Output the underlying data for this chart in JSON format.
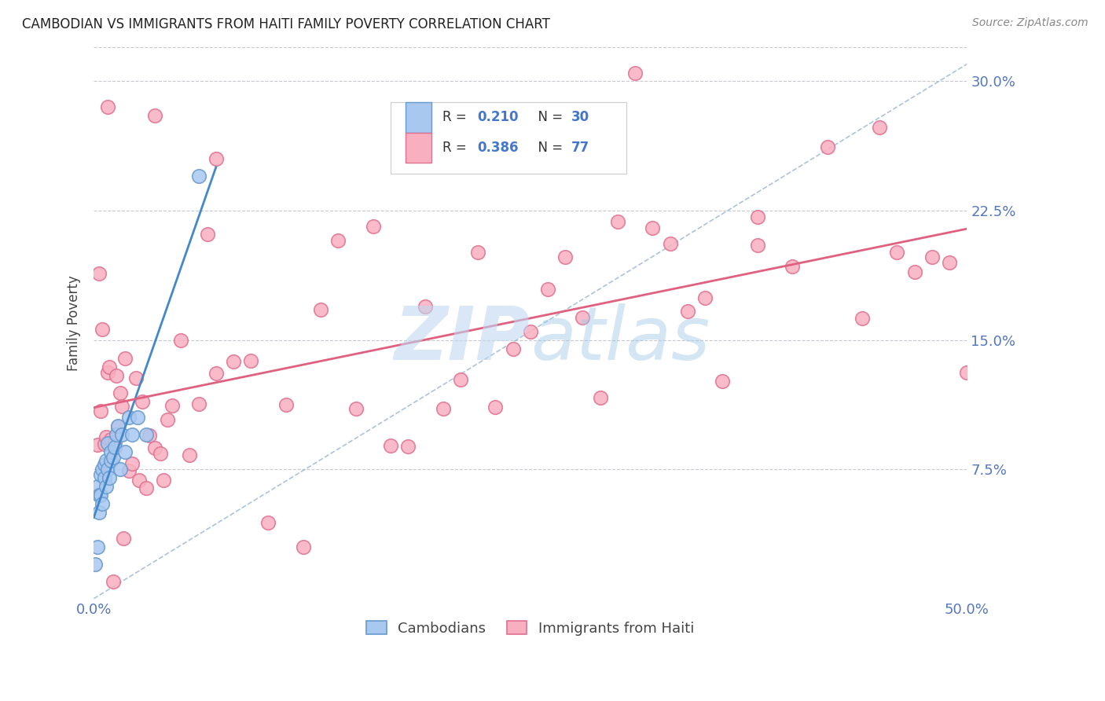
{
  "title": "CAMBODIAN VS IMMIGRANTS FROM HAITI FAMILY POVERTY CORRELATION CHART",
  "source": "Source: ZipAtlas.com",
  "ylabel": "Family Poverty",
  "ytick_labels": [
    "7.5%",
    "15.0%",
    "22.5%",
    "30.0%"
  ],
  "ytick_values": [
    0.075,
    0.15,
    0.225,
    0.3
  ],
  "xlim": [
    0.0,
    0.5
  ],
  "ylim": [
    0.0,
    0.32
  ],
  "background_color": "#ffffff",
  "grid_color": "#c8c8d0",
  "watermark_text": "ZIPatlas",
  "watermark_color": "#b8d0e8",
  "blue_color": "#a8c8f0",
  "blue_edge": "#6699cc",
  "pink_color": "#f8b0c0",
  "pink_edge": "#e07090",
  "trendline_blue": "#4488cc",
  "trendline_pink": "#e06080",
  "diagonal_color": "#88aacc",
  "label_color": "#5577bb",
  "title_color": "#222222",
  "legend_text_color": "#333333",
  "legend_value_color": "#4477cc"
}
